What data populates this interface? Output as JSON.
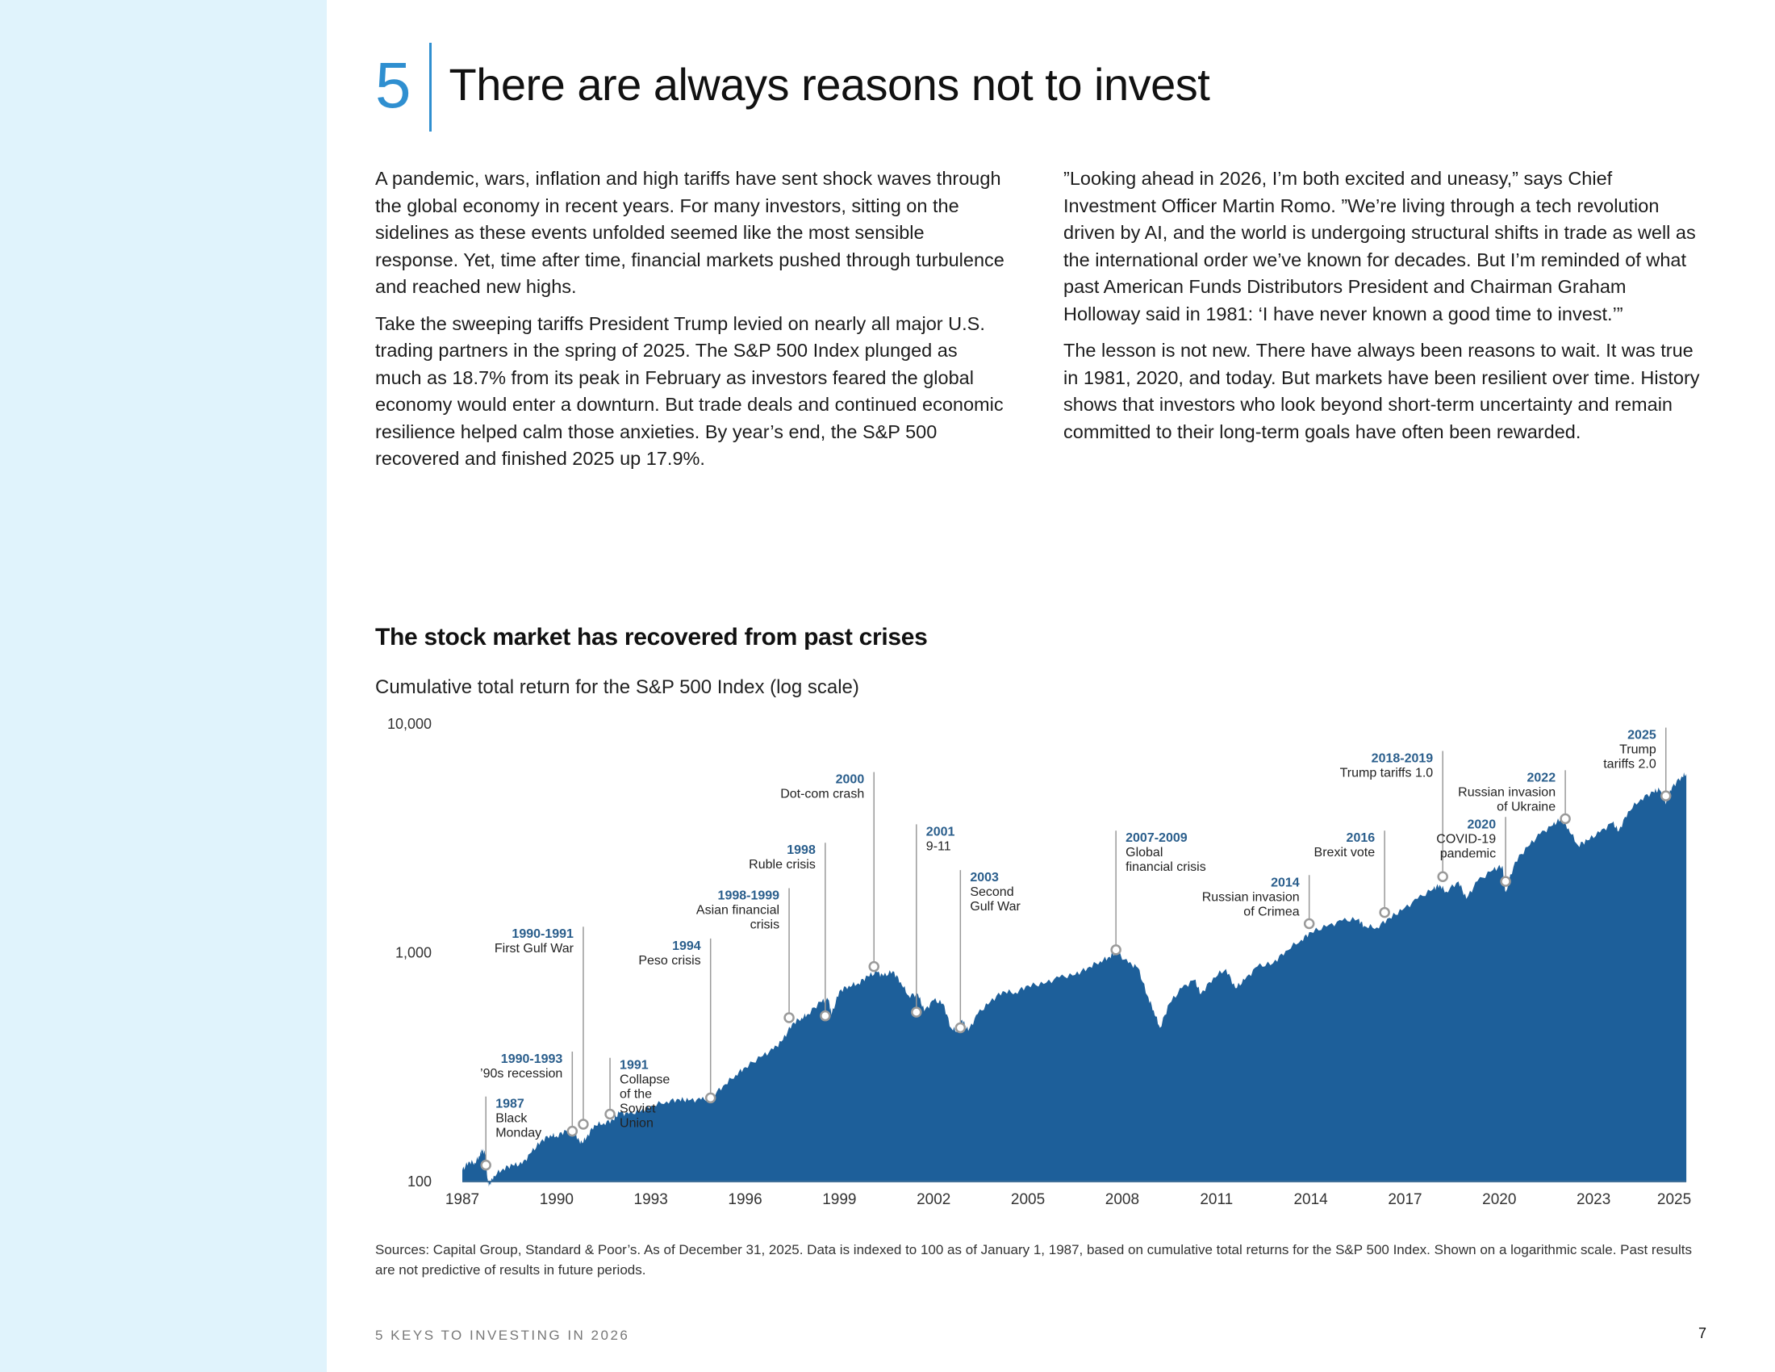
{
  "section": {
    "number": "5",
    "title": "There are always reasons not to invest"
  },
  "body": {
    "left": [
      "A pandemic, wars, inflation and high tariffs have sent shock waves through the global economy in recent years. For many investors, sitting on the sidelines as these events unfolded seemed like the most sensible response. Yet, time after time, financial markets pushed through turbulence and reached new highs.",
      "Take the sweeping tariffs President Trump levied on nearly all major U.S. trading partners in the spring of 2025. The S&P 500 Index plunged as much as 18.7% from its peak in February as investors feared the global economy would enter a downturn. But trade deals and continued economic resilience helped calm those anxieties. By year’s end, the S&P 500 recovered and finished 2025 up 17.9%."
    ],
    "right": [
      "”Looking ahead in 2026, I’m both excited and uneasy,” says Chief Investment Officer Martin Romo. ”We’re living through a tech revolution driven by AI, and the world is undergoing structural shifts in trade as well as the international order we’ve known for decades. But I’m reminded of what past American Funds Distributors President and Chairman Graham Holloway said in 1981: ‘I have never known a good time to invest.’”",
      "The lesson is not new. There have always been reasons to wait. It was true in 1981, 2020, and today. But markets have been resilient over time. History shows that investors who look beyond short-term uncertainty and remain committed to their long-term goals have often been rewarded."
    ]
  },
  "chart_data": {
    "type": "area",
    "title": "The stock market has recovered from past crises",
    "subtitle": "Cumulative total return for the S&P 500 Index (log scale)",
    "xlabel": "",
    "ylabel": "",
    "yscale": "log",
    "ylim": [
      100,
      10000
    ],
    "xlim": [
      1987,
      2026
    ],
    "y_ticks": [
      {
        "value": 10000,
        "label": "10,000"
      },
      {
        "value": 1000,
        "label": "1,000"
      },
      {
        "value": 100,
        "label": "100"
      }
    ],
    "x_ticks": [
      {
        "value": 1987,
        "label": "1987"
      },
      {
        "value": 1990,
        "label": "1990"
      },
      {
        "value": 1993,
        "label": "1993"
      },
      {
        "value": 1996,
        "label": "1996"
      },
      {
        "value": 1999,
        "label": "1999"
      },
      {
        "value": 2002,
        "label": "2002"
      },
      {
        "value": 2005,
        "label": "2005"
      },
      {
        "value": 2008,
        "label": "2008"
      },
      {
        "value": 2011,
        "label": "2011"
      },
      {
        "value": 2014,
        "label": "2014"
      },
      {
        "value": 2017,
        "label": "2017"
      },
      {
        "value": 2020,
        "label": "2020"
      },
      {
        "value": 2023,
        "label": "2023"
      },
      {
        "value": 2025,
        "label": "2025"
      }
    ],
    "grid": false,
    "fill_color": "#1d5f9a",
    "series": [
      {
        "name": "S&P 500 cumulative total return (indexed to 100)",
        "points": [
          [
            1987.0,
            112
          ],
          [
            1987.2,
            122
          ],
          [
            1987.4,
            121
          ],
          [
            1987.55,
            130
          ],
          [
            1987.62,
            137
          ],
          [
            1987.72,
            133
          ],
          [
            1987.8,
            102
          ],
          [
            1987.85,
            96
          ],
          [
            1988.0,
            106
          ],
          [
            1988.3,
            114
          ],
          [
            1988.6,
            118
          ],
          [
            1988.9,
            119
          ],
          [
            1989.2,
            134
          ],
          [
            1989.5,
            150
          ],
          [
            1989.8,
            160
          ],
          [
            1990.0,
            158
          ],
          [
            1990.3,
            167
          ],
          [
            1990.55,
            168
          ],
          [
            1990.75,
            146
          ],
          [
            1990.95,
            155
          ],
          [
            1991.2,
            177
          ],
          [
            1991.5,
            180
          ],
          [
            1991.8,
            186
          ],
          [
            1992.0,
            200
          ],
          [
            1992.3,
            197
          ],
          [
            1992.7,
            204
          ],
          [
            1993.0,
            214
          ],
          [
            1993.5,
            224
          ],
          [
            1993.9,
            229
          ],
          [
            1994.2,
            226
          ],
          [
            1994.6,
            228
          ],
          [
            1994.9,
            232
          ],
          [
            1995.3,
            262
          ],
          [
            1995.7,
            293
          ],
          [
            1996.0,
            316
          ],
          [
            1996.5,
            350
          ],
          [
            1996.9,
            378
          ],
          [
            1997.2,
            415
          ],
          [
            1997.5,
            490
          ],
          [
            1997.8,
            520
          ],
          [
            1998.0,
            540
          ],
          [
            1998.4,
            610
          ],
          [
            1998.65,
            622
          ],
          [
            1998.75,
            535
          ],
          [
            1999.0,
            680
          ],
          [
            1999.3,
            718
          ],
          [
            1999.6,
            735
          ],
          [
            1999.9,
            790
          ],
          [
            2000.2,
            820
          ],
          [
            2000.4,
            790
          ],
          [
            2000.7,
            830
          ],
          [
            2000.95,
            745
          ],
          [
            2001.2,
            650
          ],
          [
            2001.5,
            660
          ],
          [
            2001.7,
            555
          ],
          [
            2002.0,
            620
          ],
          [
            2002.3,
            600
          ],
          [
            2002.55,
            470
          ],
          [
            2002.75,
            455
          ],
          [
            2002.9,
            510
          ],
          [
            2003.1,
            455
          ],
          [
            2003.4,
            540
          ],
          [
            2003.8,
            610
          ],
          [
            2004.2,
            680
          ],
          [
            2004.6,
            670
          ],
          [
            2005.0,
            720
          ],
          [
            2005.5,
            730
          ],
          [
            2006.0,
            780
          ],
          [
            2006.5,
            800
          ],
          [
            2006.9,
            860
          ],
          [
            2007.3,
            920
          ],
          [
            2007.6,
            960
          ],
          [
            2007.8,
            1010
          ],
          [
            2008.2,
            900
          ],
          [
            2008.5,
            860
          ],
          [
            2008.8,
            650
          ],
          [
            2009.0,
            560
          ],
          [
            2009.2,
            470
          ],
          [
            2009.5,
            600
          ],
          [
            2009.9,
            700
          ],
          [
            2010.3,
            760
          ],
          [
            2010.5,
            660
          ],
          [
            2010.9,
            780
          ],
          [
            2011.3,
            850
          ],
          [
            2011.6,
            700
          ],
          [
            2011.9,
            760
          ],
          [
            2012.3,
            870
          ],
          [
            2012.8,
            900
          ],
          [
            2013.2,
            1020
          ],
          [
            2013.7,
            1140
          ],
          [
            2014.0,
            1230
          ],
          [
            2014.5,
            1300
          ],
          [
            2015.0,
            1380
          ],
          [
            2015.5,
            1400
          ],
          [
            2015.7,
            1310
          ],
          [
            2016.1,
            1290
          ],
          [
            2016.5,
            1420
          ],
          [
            2016.9,
            1530
          ],
          [
            2017.4,
            1720
          ],
          [
            2017.9,
            1900
          ],
          [
            2018.1,
            1980
          ],
          [
            2018.3,
            1850
          ],
          [
            2018.7,
            2050
          ],
          [
            2018.95,
            1720
          ],
          [
            2019.3,
            2050
          ],
          [
            2019.8,
            2300
          ],
          [
            2020.1,
            2400
          ],
          [
            2020.2,
            1840
          ],
          [
            2020.5,
            2500
          ],
          [
            2020.9,
            2900
          ],
          [
            2021.3,
            3300
          ],
          [
            2021.7,
            3600
          ],
          [
            2021.95,
            3850
          ],
          [
            2022.2,
            3500
          ],
          [
            2022.5,
            2950
          ],
          [
            2022.8,
            3100
          ],
          [
            2023.2,
            3350
          ],
          [
            2023.6,
            3700
          ],
          [
            2023.8,
            3400
          ],
          [
            2024.1,
            4150
          ],
          [
            2024.5,
            4700
          ],
          [
            2024.9,
            5050
          ],
          [
            2025.1,
            5150
          ],
          [
            2025.3,
            4450
          ],
          [
            2025.5,
            5300
          ],
          [
            2025.8,
            5900
          ],
          [
            2025.95,
            6050
          ]
        ]
      }
    ],
    "annotations": [
      {
        "year": "1987",
        "text": [
          "Black",
          "Monday"
        ],
        "x": 1987.75,
        "value": 118,
        "side": "right",
        "label_value": 210
      },
      {
        "year": "1990-1993",
        "text": [
          "’90s recession"
        ],
        "x": 1990.5,
        "value": 166,
        "side": "left",
        "label_value": 330
      },
      {
        "year": "1990-1991",
        "text": [
          "First Gulf War"
        ],
        "x": 1990.85,
        "value": 178,
        "side": "left",
        "label_value": 1160
      },
      {
        "year": "1991",
        "text": [
          "Collapse",
          "of the",
          "Soviet",
          "Union"
        ],
        "x": 1991.7,
        "value": 197,
        "side": "right",
        "label_value": 310
      },
      {
        "year": "1994",
        "text": [
          "Peso crisis"
        ],
        "x": 1994.9,
        "value": 232,
        "side": "left",
        "label_value": 1030
      },
      {
        "year": "1998-1999",
        "text": [
          "Asian financial",
          "crisis"
        ],
        "x": 1997.4,
        "value": 520,
        "side": "left",
        "label_value": 1710
      },
      {
        "year": "1998",
        "text": [
          "Ruble crisis"
        ],
        "x": 1998.55,
        "value": 530,
        "side": "left",
        "label_value": 2700
      },
      {
        "year": "2000",
        "text": [
          "Dot-com crash"
        ],
        "x": 2000.1,
        "value": 870,
        "side": "left",
        "label_value": 5500
      },
      {
        "year": "2001",
        "text": [
          "9-11"
        ],
        "x": 2001.45,
        "value": 550,
        "side": "right",
        "label_value": 3250
      },
      {
        "year": "2003",
        "text": [
          "Second",
          "Gulf War"
        ],
        "x": 2002.85,
        "value": 470,
        "side": "right",
        "label_value": 2050
      },
      {
        "year": "2007-2009",
        "text": [
          "Global",
          "financial crisis"
        ],
        "x": 2007.8,
        "value": 1030,
        "side": "right",
        "label_value": 3050
      },
      {
        "year": "2014",
        "text": [
          "Russian invasion",
          "of Crimea"
        ],
        "x": 2013.95,
        "value": 1340,
        "side": "left",
        "label_value": 1950
      },
      {
        "year": "2016",
        "text": [
          "Brexit vote"
        ],
        "x": 2016.35,
        "value": 1500,
        "side": "left",
        "label_value": 3050
      },
      {
        "year": "2018-2019",
        "text": [
          "Trump tariffs 1.0"
        ],
        "x": 2018.2,
        "value": 2150,
        "side": "left",
        "label_value": 6800
      },
      {
        "year": "2020",
        "text": [
          "COVID-19",
          "pandemic"
        ],
        "x": 2020.2,
        "value": 2050,
        "side": "left",
        "label_value": 3500
      },
      {
        "year": "2022",
        "text": [
          "Russian invasion",
          "of Ukraine"
        ],
        "x": 2022.1,
        "value": 3850,
        "side": "left",
        "label_value": 5600
      },
      {
        "year": "2025",
        "text": [
          "Trump",
          "tariffs 2.0"
        ],
        "x": 2025.3,
        "value": 4850,
        "side": "left",
        "label_value": 8600
      }
    ]
  },
  "sources": "Sources: Capital Group, Standard & Poor’s. As of December 31, 2025. Data is indexed to 100 as of January 1, 1987, based on cumulative total returns for the S&P 500 Index. Shown on a logarithmic scale. Past results are not predictive of results in future periods.",
  "footer": {
    "publication": "5 KEYS TO INVESTING IN 2026",
    "page_number": "7"
  }
}
